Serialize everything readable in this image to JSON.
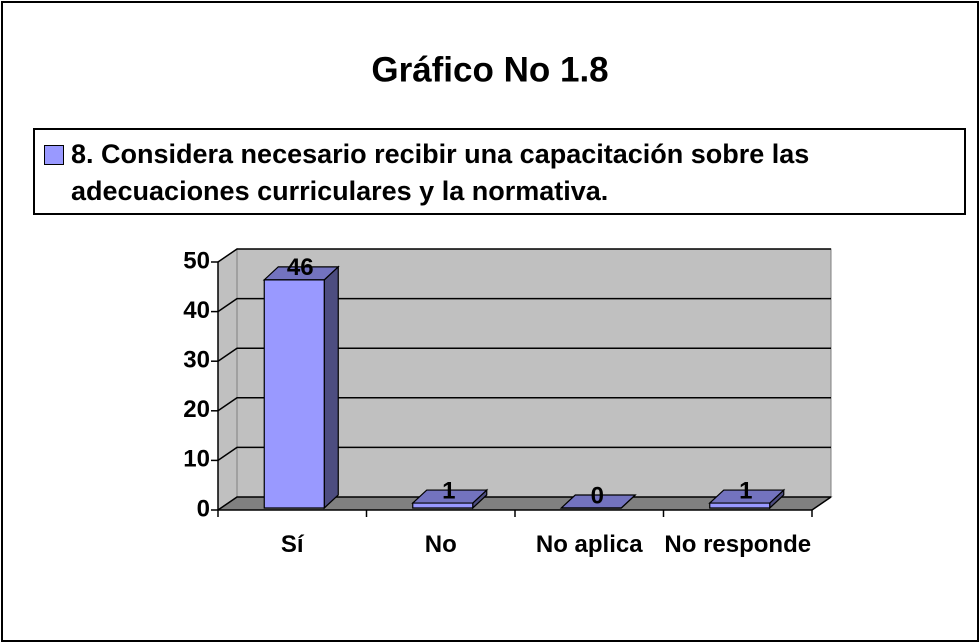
{
  "chart_data": {
    "type": "bar",
    "title": "Gráfico No 1.8",
    "categories": [
      "Sí",
      "No",
      "No aplica",
      "No responde"
    ],
    "series": [
      {
        "name": "8. Considera necesario recibir una capacitación sobre las adecuaciones curriculares y la normativa.",
        "color": "#9999ff",
        "values": [
          46,
          1,
          0,
          1
        ]
      }
    ],
    "ylim": [
      0,
      50
    ],
    "yticks": [
      0,
      10,
      20,
      30,
      40,
      50
    ],
    "grid": true,
    "legend": "top"
  }
}
